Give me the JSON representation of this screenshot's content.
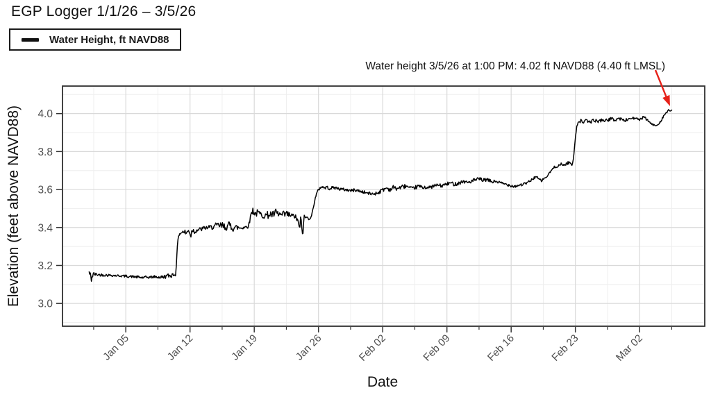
{
  "chart_data": {
    "type": "line",
    "title": "EGP Logger 1/1/26 – 3/5/26",
    "legend_label": "Water Height, ft NAVD88",
    "annotation": "Water height 3/5/26 at 1:00 PM: 4.02 ft NAVD88 (4.40 ft LMSL)",
    "xlabel": "Date",
    "ylabel": "Elevation (feet above NAVD88)",
    "grid": "on",
    "legend_position": "top-left outside plot",
    "x_start_date": "1/1/26",
    "x_end_date": "3/5/26",
    "x_domain_days": [
      -2.9,
      67.1
    ],
    "y_domain": [
      2.88,
      4.145
    ],
    "x_ticks": [
      {
        "d": 4,
        "label": "Jan 05"
      },
      {
        "d": 11,
        "label": "Jan 12"
      },
      {
        "d": 18,
        "label": "Jan 19"
      },
      {
        "d": 25,
        "label": "Jan 26"
      },
      {
        "d": 32,
        "label": "Feb 02"
      },
      {
        "d": 39,
        "label": "Feb 09"
      },
      {
        "d": 46,
        "label": "Feb 16"
      },
      {
        "d": 53,
        "label": "Feb 23"
      },
      {
        "d": 60,
        "label": "Mar 02"
      }
    ],
    "x_minor_days": [
      0.5,
      7.5,
      14.5,
      21.5,
      28.5,
      35.5,
      42.5,
      49.5,
      56.5,
      63.5
    ],
    "y_ticks": [
      {
        "v": 3.0,
        "label": "3.0"
      },
      {
        "v": 3.2,
        "label": "3.2"
      },
      {
        "v": 3.4,
        "label": "3.4"
      },
      {
        "v": 3.6,
        "label": "3.6"
      },
      {
        "v": 3.8,
        "label": "3.8"
      },
      {
        "v": 4.0,
        "label": "4.0"
      }
    ],
    "y_minor": [
      2.9,
      3.1,
      3.3,
      3.5,
      3.7,
      3.9,
      4.1
    ],
    "colors": {
      "line": "#000000",
      "grid_major": "#d9d9d9",
      "grid_minor": "#eeeeee",
      "panel_border": "#2f2f2f",
      "tick": "#333333",
      "tick_label": "#4d4d4d",
      "arrow": "#e62119"
    },
    "final_point": {
      "date": "3/5/26",
      "time": "1:00 PM",
      "navd88_ft": 4.02,
      "lmsl_ft": 4.4,
      "day": 63.54
    },
    "series": [
      {
        "name": "Water Height, ft NAVD88",
        "keypoints_format": [
          "day_since_jan1",
          "elevation_ft_navd88",
          "noise_amp_ft"
        ],
        "keypoints": [
          [
            0.0,
            3.165,
            0.018
          ],
          [
            0.25,
            3.13,
            0.02
          ],
          [
            0.45,
            3.155,
            0.012
          ],
          [
            0.8,
            3.152,
            0.008
          ],
          [
            1.5,
            3.15,
            0.007
          ],
          [
            2.5,
            3.148,
            0.006
          ],
          [
            3.5,
            3.145,
            0.006
          ],
          [
            4.5,
            3.142,
            0.007
          ],
          [
            5.2,
            3.139,
            0.007
          ],
          [
            5.8,
            3.136,
            0.008
          ],
          [
            6.5,
            3.138,
            0.007
          ],
          [
            7.2,
            3.14,
            0.007
          ],
          [
            7.8,
            3.137,
            0.009
          ],
          [
            8.4,
            3.143,
            0.011
          ],
          [
            8.9,
            3.148,
            0.013
          ],
          [
            9.2,
            3.152,
            0.014
          ],
          [
            9.42,
            3.155,
            0.01
          ],
          [
            9.5,
            3.2,
            0.004
          ],
          [
            9.62,
            3.3,
            0.004
          ],
          [
            9.75,
            3.36,
            0.008
          ],
          [
            10.0,
            3.372,
            0.01
          ],
          [
            10.3,
            3.378,
            0.013
          ],
          [
            10.6,
            3.37,
            0.018
          ],
          [
            10.9,
            3.385,
            0.018
          ],
          [
            11.1,
            3.36,
            0.028
          ],
          [
            11.25,
            3.39,
            0.015
          ],
          [
            11.5,
            3.378,
            0.012
          ],
          [
            11.8,
            3.388,
            0.011
          ],
          [
            12.2,
            3.39,
            0.012
          ],
          [
            12.6,
            3.398,
            0.011
          ],
          [
            13.0,
            3.4,
            0.01
          ],
          [
            13.4,
            3.402,
            0.013
          ],
          [
            13.8,
            3.408,
            0.016
          ],
          [
            14.2,
            3.41,
            0.02
          ],
          [
            14.6,
            3.406,
            0.022
          ],
          [
            15.0,
            3.402,
            0.018
          ],
          [
            15.35,
            3.412,
            0.026
          ],
          [
            15.7,
            3.4,
            0.022
          ],
          [
            16.1,
            3.4,
            0.016
          ],
          [
            16.5,
            3.398,
            0.013
          ],
          [
            16.9,
            3.402,
            0.011
          ],
          [
            17.3,
            3.405,
            0.009
          ],
          [
            17.5,
            3.43,
            0.006
          ],
          [
            17.65,
            3.475,
            0.012
          ],
          [
            17.85,
            3.49,
            0.018
          ],
          [
            18.1,
            3.472,
            0.02
          ],
          [
            18.4,
            3.478,
            0.018
          ],
          [
            18.7,
            3.468,
            0.018
          ],
          [
            19.0,
            3.472,
            0.026
          ],
          [
            19.3,
            3.462,
            0.018
          ],
          [
            19.65,
            3.47,
            0.022
          ],
          [
            20.0,
            3.466,
            0.018
          ],
          [
            20.35,
            3.474,
            0.026
          ],
          [
            20.7,
            3.468,
            0.02
          ],
          [
            21.05,
            3.464,
            0.016
          ],
          [
            21.4,
            3.47,
            0.026
          ],
          [
            21.75,
            3.466,
            0.018
          ],
          [
            22.1,
            3.462,
            0.014
          ],
          [
            22.45,
            3.458,
            0.012
          ],
          [
            22.7,
            3.44,
            0.02
          ],
          [
            22.9,
            3.39,
            0.035
          ],
          [
            23.05,
            3.445,
            0.015
          ],
          [
            23.25,
            3.37,
            0.045
          ],
          [
            23.45,
            3.455,
            0.012
          ],
          [
            23.7,
            3.452,
            0.01
          ],
          [
            24.0,
            3.448,
            0.008
          ],
          [
            24.25,
            3.46,
            0.006
          ],
          [
            24.45,
            3.51,
            0.005
          ],
          [
            24.65,
            3.555,
            0.005
          ],
          [
            24.85,
            3.585,
            0.006
          ],
          [
            25.1,
            3.605,
            0.008
          ],
          [
            25.35,
            3.617,
            0.009
          ],
          [
            25.6,
            3.608,
            0.008
          ],
          [
            25.9,
            3.612,
            0.008
          ],
          [
            26.2,
            3.606,
            0.008
          ],
          [
            26.6,
            3.61,
            0.008
          ],
          [
            27.0,
            3.608,
            0.008
          ],
          [
            27.4,
            3.602,
            0.008
          ],
          [
            27.8,
            3.6,
            0.008
          ],
          [
            28.2,
            3.597,
            0.008
          ],
          [
            28.6,
            3.594,
            0.009
          ],
          [
            29.0,
            3.598,
            0.008
          ],
          [
            29.4,
            3.592,
            0.008
          ],
          [
            29.8,
            3.588,
            0.008
          ],
          [
            30.2,
            3.583,
            0.008
          ],
          [
            30.6,
            3.578,
            0.009
          ],
          [
            31.0,
            3.577,
            0.008
          ],
          [
            31.4,
            3.582,
            0.01
          ],
          [
            31.8,
            3.592,
            0.011
          ],
          [
            32.1,
            3.601,
            0.012
          ],
          [
            32.45,
            3.609,
            0.012
          ],
          [
            32.8,
            3.598,
            0.009
          ],
          [
            33.15,
            3.612,
            0.011
          ],
          [
            33.5,
            3.604,
            0.009
          ],
          [
            33.85,
            3.61,
            0.01
          ],
          [
            34.2,
            3.615,
            0.011
          ],
          [
            34.55,
            3.619,
            0.011
          ],
          [
            34.9,
            3.608,
            0.009
          ],
          [
            35.25,
            3.604,
            0.009
          ],
          [
            35.6,
            3.612,
            0.01
          ],
          [
            35.95,
            3.618,
            0.01
          ],
          [
            36.3,
            3.61,
            0.009
          ],
          [
            36.65,
            3.614,
            0.01
          ],
          [
            37.0,
            3.608,
            0.009
          ],
          [
            37.35,
            3.615,
            0.01
          ],
          [
            37.7,
            3.62,
            0.01
          ],
          [
            38.05,
            3.624,
            0.01
          ],
          [
            38.4,
            3.618,
            0.009
          ],
          [
            38.75,
            3.625,
            0.01
          ],
          [
            39.1,
            3.63,
            0.01
          ],
          [
            39.45,
            3.634,
            0.01
          ],
          [
            39.8,
            3.628,
            0.009
          ],
          [
            40.15,
            3.632,
            0.01
          ],
          [
            40.5,
            3.638,
            0.01
          ],
          [
            40.85,
            3.643,
            0.01
          ],
          [
            41.2,
            3.637,
            0.009
          ],
          [
            41.55,
            3.641,
            0.01
          ],
          [
            41.9,
            3.648,
            0.01
          ],
          [
            42.25,
            3.652,
            0.01
          ],
          [
            42.6,
            3.655,
            0.01
          ],
          [
            42.95,
            3.648,
            0.009
          ],
          [
            43.3,
            3.652,
            0.009
          ],
          [
            43.65,
            3.646,
            0.009
          ],
          [
            44.0,
            3.64,
            0.009
          ],
          [
            44.35,
            3.644,
            0.009
          ],
          [
            44.7,
            3.637,
            0.008
          ],
          [
            45.05,
            3.632,
            0.008
          ],
          [
            45.4,
            3.628,
            0.008
          ],
          [
            45.75,
            3.624,
            0.008
          ],
          [
            46.1,
            3.62,
            0.008
          ],
          [
            46.45,
            3.617,
            0.008
          ],
          [
            46.8,
            3.622,
            0.008
          ],
          [
            47.15,
            3.626,
            0.008
          ],
          [
            47.5,
            3.63,
            0.007
          ],
          [
            47.85,
            3.638,
            0.007
          ],
          [
            48.15,
            3.648,
            0.007
          ],
          [
            48.45,
            3.66,
            0.007
          ],
          [
            48.7,
            3.668,
            0.007
          ],
          [
            49.0,
            3.655,
            0.007
          ],
          [
            49.3,
            3.646,
            0.006
          ],
          [
            49.6,
            3.658,
            0.006
          ],
          [
            49.9,
            3.668,
            0.005
          ],
          [
            50.2,
            3.688,
            0.005
          ],
          [
            50.45,
            3.705,
            0.005
          ],
          [
            50.7,
            3.717,
            0.006
          ],
          [
            50.95,
            3.722,
            0.007
          ],
          [
            51.2,
            3.727,
            0.008
          ],
          [
            51.45,
            3.732,
            0.008
          ],
          [
            51.7,
            3.728,
            0.007
          ],
          [
            51.95,
            3.734,
            0.008
          ],
          [
            52.2,
            3.74,
            0.008
          ],
          [
            52.45,
            3.744,
            0.006
          ],
          [
            52.62,
            3.724,
            0.004
          ],
          [
            52.78,
            3.76,
            0.003
          ],
          [
            52.9,
            3.82,
            0.003
          ],
          [
            53.02,
            3.88,
            0.003
          ],
          [
            53.15,
            3.935,
            0.004
          ],
          [
            53.3,
            3.955,
            0.007
          ],
          [
            53.6,
            3.962,
            0.009
          ],
          [
            53.9,
            3.956,
            0.009
          ],
          [
            54.2,
            3.962,
            0.009
          ],
          [
            54.5,
            3.955,
            0.008
          ],
          [
            54.8,
            3.96,
            0.009
          ],
          [
            55.1,
            3.966,
            0.009
          ],
          [
            55.4,
            3.958,
            0.008
          ],
          [
            55.7,
            3.963,
            0.009
          ],
          [
            56.0,
            3.968,
            0.009
          ],
          [
            56.3,
            3.962,
            0.008
          ],
          [
            56.6,
            3.968,
            0.009
          ],
          [
            56.9,
            3.973,
            0.009
          ],
          [
            57.2,
            3.966,
            0.008
          ],
          [
            57.5,
            3.97,
            0.009
          ],
          [
            57.8,
            3.975,
            0.009
          ],
          [
            58.1,
            3.968,
            0.008
          ],
          [
            58.4,
            3.963,
            0.008
          ],
          [
            58.7,
            3.97,
            0.009
          ],
          [
            59.0,
            3.974,
            0.009
          ],
          [
            59.3,
            3.978,
            0.008
          ],
          [
            59.6,
            3.972,
            0.008
          ],
          [
            59.9,
            3.968,
            0.008
          ],
          [
            60.2,
            3.974,
            0.009
          ],
          [
            60.5,
            3.979,
            0.008
          ],
          [
            60.8,
            3.968,
            0.007
          ],
          [
            61.1,
            3.953,
            0.006
          ],
          [
            61.4,
            3.942,
            0.005
          ],
          [
            61.7,
            3.936,
            0.005
          ],
          [
            62.0,
            3.943,
            0.005
          ],
          [
            62.3,
            3.96,
            0.006
          ],
          [
            62.55,
            3.982,
            0.006
          ],
          [
            62.8,
            4.0,
            0.006
          ],
          [
            63.0,
            4.008,
            0.005
          ],
          [
            63.15,
            4.018,
            0.004
          ],
          [
            63.3,
            4.012,
            0.004
          ],
          [
            63.42,
            4.016,
            0.003
          ],
          [
            63.54,
            4.02,
            0.0
          ]
        ]
      }
    ]
  }
}
